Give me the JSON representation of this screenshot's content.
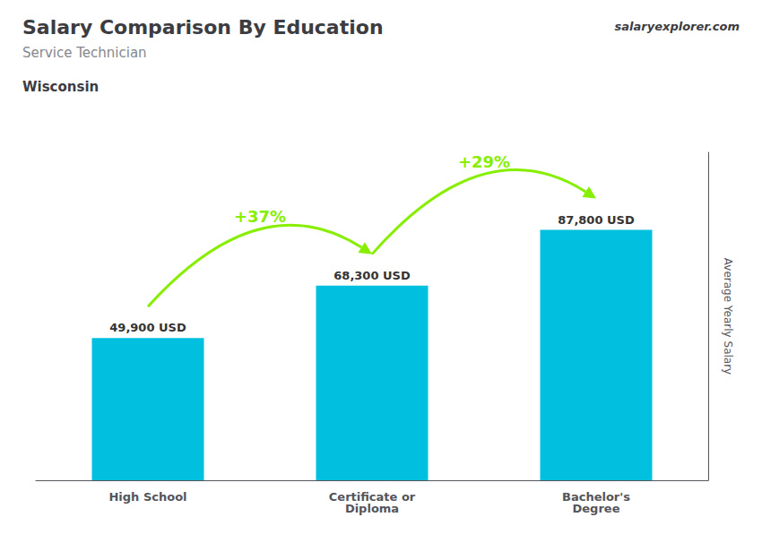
{
  "chart_data": {
    "type": "bar",
    "title": "Salary Comparison By Education",
    "subtitle": "Service Technician",
    "categories": [
      "High School",
      "Certificate or\nDiploma",
      "Bachelor's\nDegree"
    ],
    "values": [
      49900,
      68300,
      87800
    ],
    "value_labels": [
      "49,900 USD",
      "68,300 USD",
      "87,800 USD"
    ],
    "data_labels": true,
    "color": "#00bfdf",
    "ylabel": "Average Yearly Salary",
    "ylim": [
      0,
      115000
    ],
    "tick_labels": "x",
    "grid": false,
    "annotations": [
      {
        "text": "Wisconsin"
      },
      {
        "text": "salaryexplorer.com"
      },
      {
        "text": "+37%",
        "color": "#88ee00",
        "from": "High School",
        "to": "Certificate or\nDiploma"
      },
      {
        "text": "+29%",
        "color": "#88ee00",
        "from": "Certificate or\nDiploma",
        "to": "Bachelor's\nDegree"
      }
    ]
  }
}
